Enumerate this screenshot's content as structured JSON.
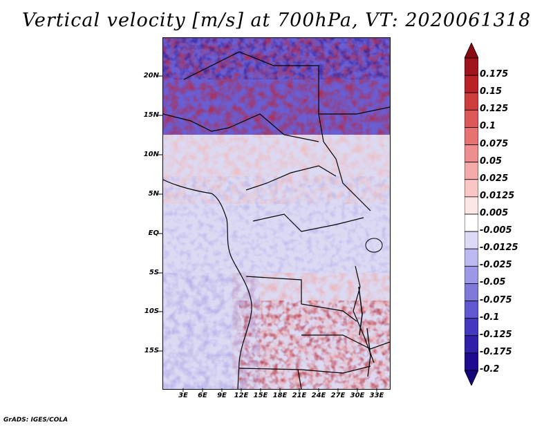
{
  "title": "Vertical velocity [m/s] at 700hPa, VT: 2020061318",
  "map": {
    "latitude_labels": [
      "20N",
      "15N",
      "10N",
      "5N",
      "EQ",
      "5S",
      "10S",
      "15S"
    ],
    "longitude_labels": [
      "3E",
      "6E",
      "9E",
      "12E",
      "15E",
      "18E",
      "21E",
      "24E",
      "27E",
      "30E",
      "33E"
    ],
    "colors": {
      "strong_down": "#2a1a9a",
      "down": "#7a78dc",
      "weak_down": "#d9d6f3",
      "weak_up": "#f5c8c8",
      "up": "#e0585a",
      "strong_up": "#a01820"
    }
  },
  "colorbar": {
    "labels": [
      "0.175",
      "0.15",
      "0.125",
      "0.1",
      "0.075",
      "0.05",
      "0.025",
      "0.0125",
      "0.005",
      "-0.005",
      "-0.0125",
      "-0.025",
      "-0.05",
      "-0.075",
      "-0.1",
      "-0.125",
      "-0.175",
      "-0.2"
    ],
    "colors": [
      "#a0141e",
      "#bb2228",
      "#cf3c3c",
      "#dd5858",
      "#e87272",
      "#ef8e8e",
      "#f5aaaa",
      "#fac6c6",
      "#fde6e6",
      "#ffffff",
      "#dcdaf7",
      "#bcb8f0",
      "#9d99e6",
      "#7f79dc",
      "#6058d0",
      "#4438c0",
      "#3020aa",
      "#1e0c90"
    ],
    "top_color": "#8a0a14",
    "bottom_color": "#12067a"
  },
  "credit": "GrADS: IGES/COLA"
}
